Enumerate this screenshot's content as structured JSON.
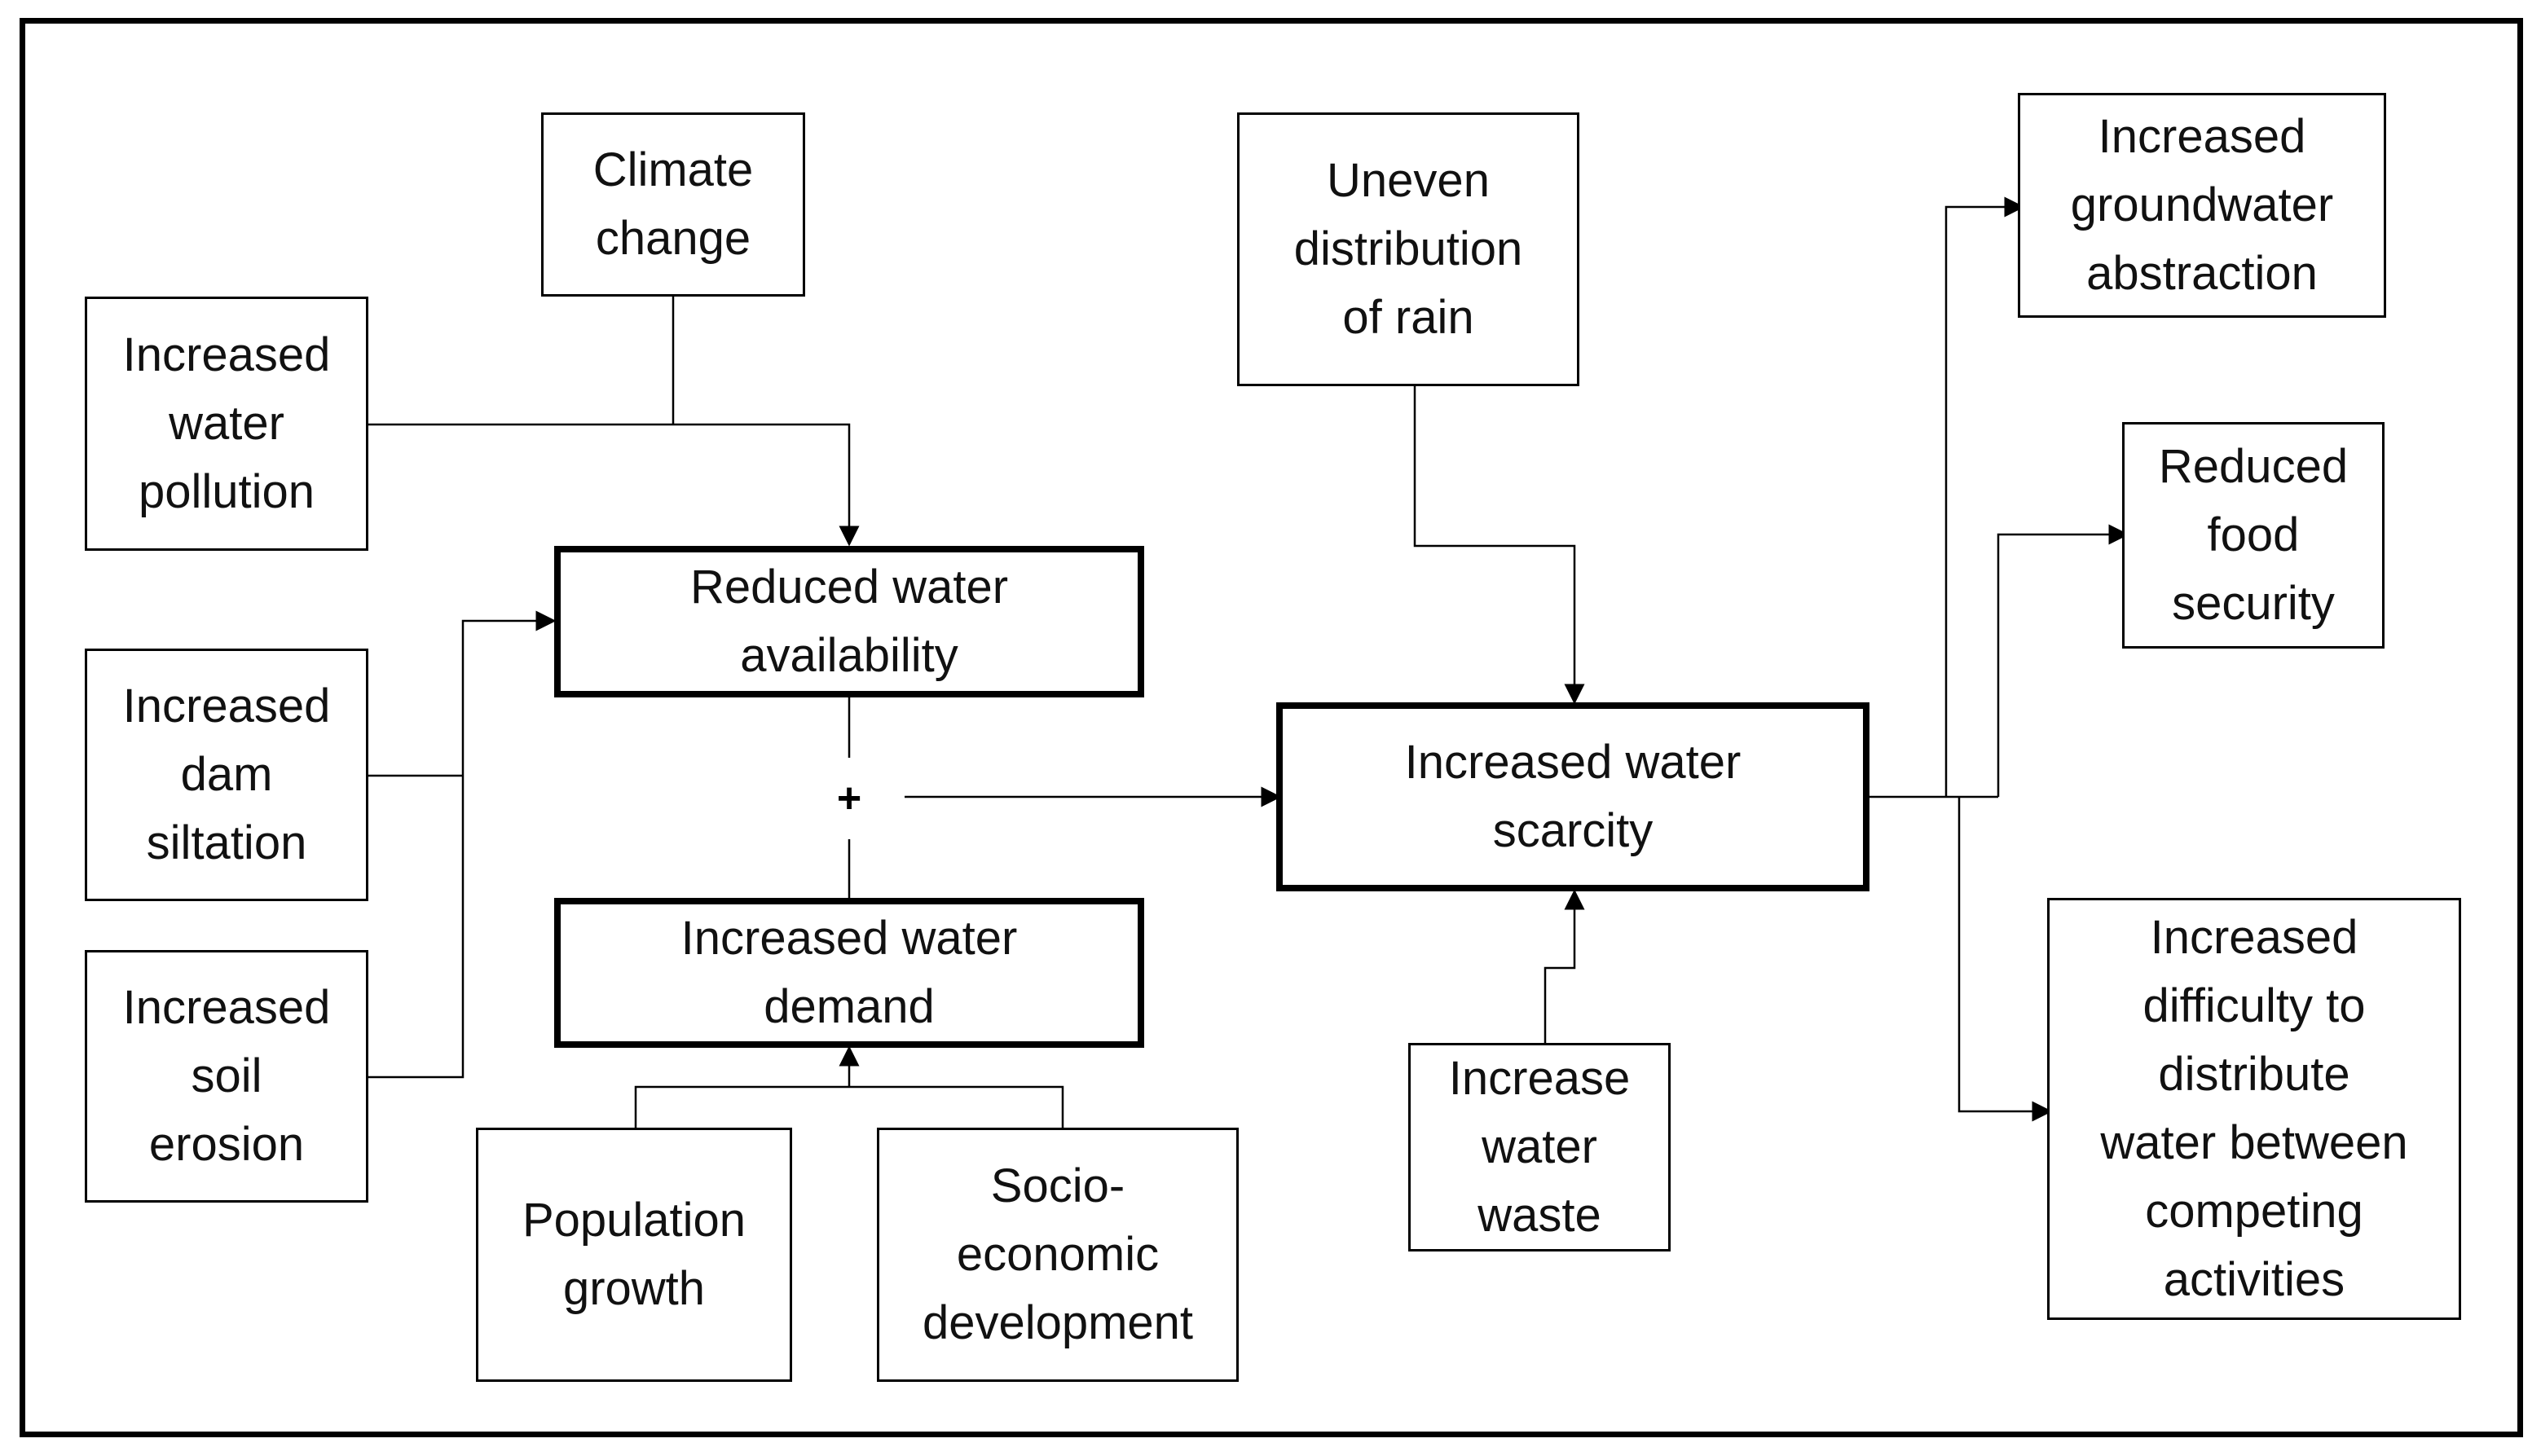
{
  "nodes": {
    "climate_change": "Climate\nchange",
    "increased_water_pollution": "Increased\nwater\npollution",
    "increased_dam_siltation": "Increased\ndam\nsiltation",
    "increased_soil_erosion": "Increased\nsoil\nerosion",
    "reduced_water_availability": "Reduced water\navailability",
    "increased_water_demand": "Increased water\ndemand",
    "population_growth": "Population\ngrowth",
    "socio_economic_development": "Socio-\neconomic\ndevelopment",
    "uneven_distribution_of_rain": "Uneven\ndistribution\nof rain",
    "increased_water_scarcity": "Increased water\nscarcity",
    "increase_water_waste": "Increase\nwater\nwaste",
    "increased_groundwater_abstraction": "Increased\ngroundwater\nabstraction",
    "reduced_food_security": "Reduced\nfood\nsecurity",
    "increased_difficulty_to_distribute": "Increased\ndifficulty to\ndistribute\nwater between\ncompeting\nactivities"
  },
  "combine_symbol": "+",
  "edges": [
    {
      "from": "climate_change",
      "to": "reduced_water_availability"
    },
    {
      "from": "increased_water_pollution",
      "to": "reduced_water_availability"
    },
    {
      "from": "increased_dam_siltation",
      "to": "reduced_water_availability"
    },
    {
      "from": "increased_soil_erosion",
      "to": "reduced_water_availability"
    },
    {
      "from": "population_growth",
      "to": "increased_water_demand"
    },
    {
      "from": "socio_economic_development",
      "to": "increased_water_demand"
    },
    {
      "from": "reduced_water_availability",
      "to": "increased_water_scarcity"
    },
    {
      "from": "increased_water_demand",
      "to": "increased_water_scarcity"
    },
    {
      "from": "uneven_distribution_of_rain",
      "to": "increased_water_scarcity"
    },
    {
      "from": "increase_water_waste",
      "to": "increased_water_scarcity"
    },
    {
      "from": "increased_water_scarcity",
      "to": "increased_groundwater_abstraction"
    },
    {
      "from": "increased_water_scarcity",
      "to": "reduced_food_security"
    },
    {
      "from": "increased_water_scarcity",
      "to": "increased_difficulty_to_distribute"
    }
  ]
}
